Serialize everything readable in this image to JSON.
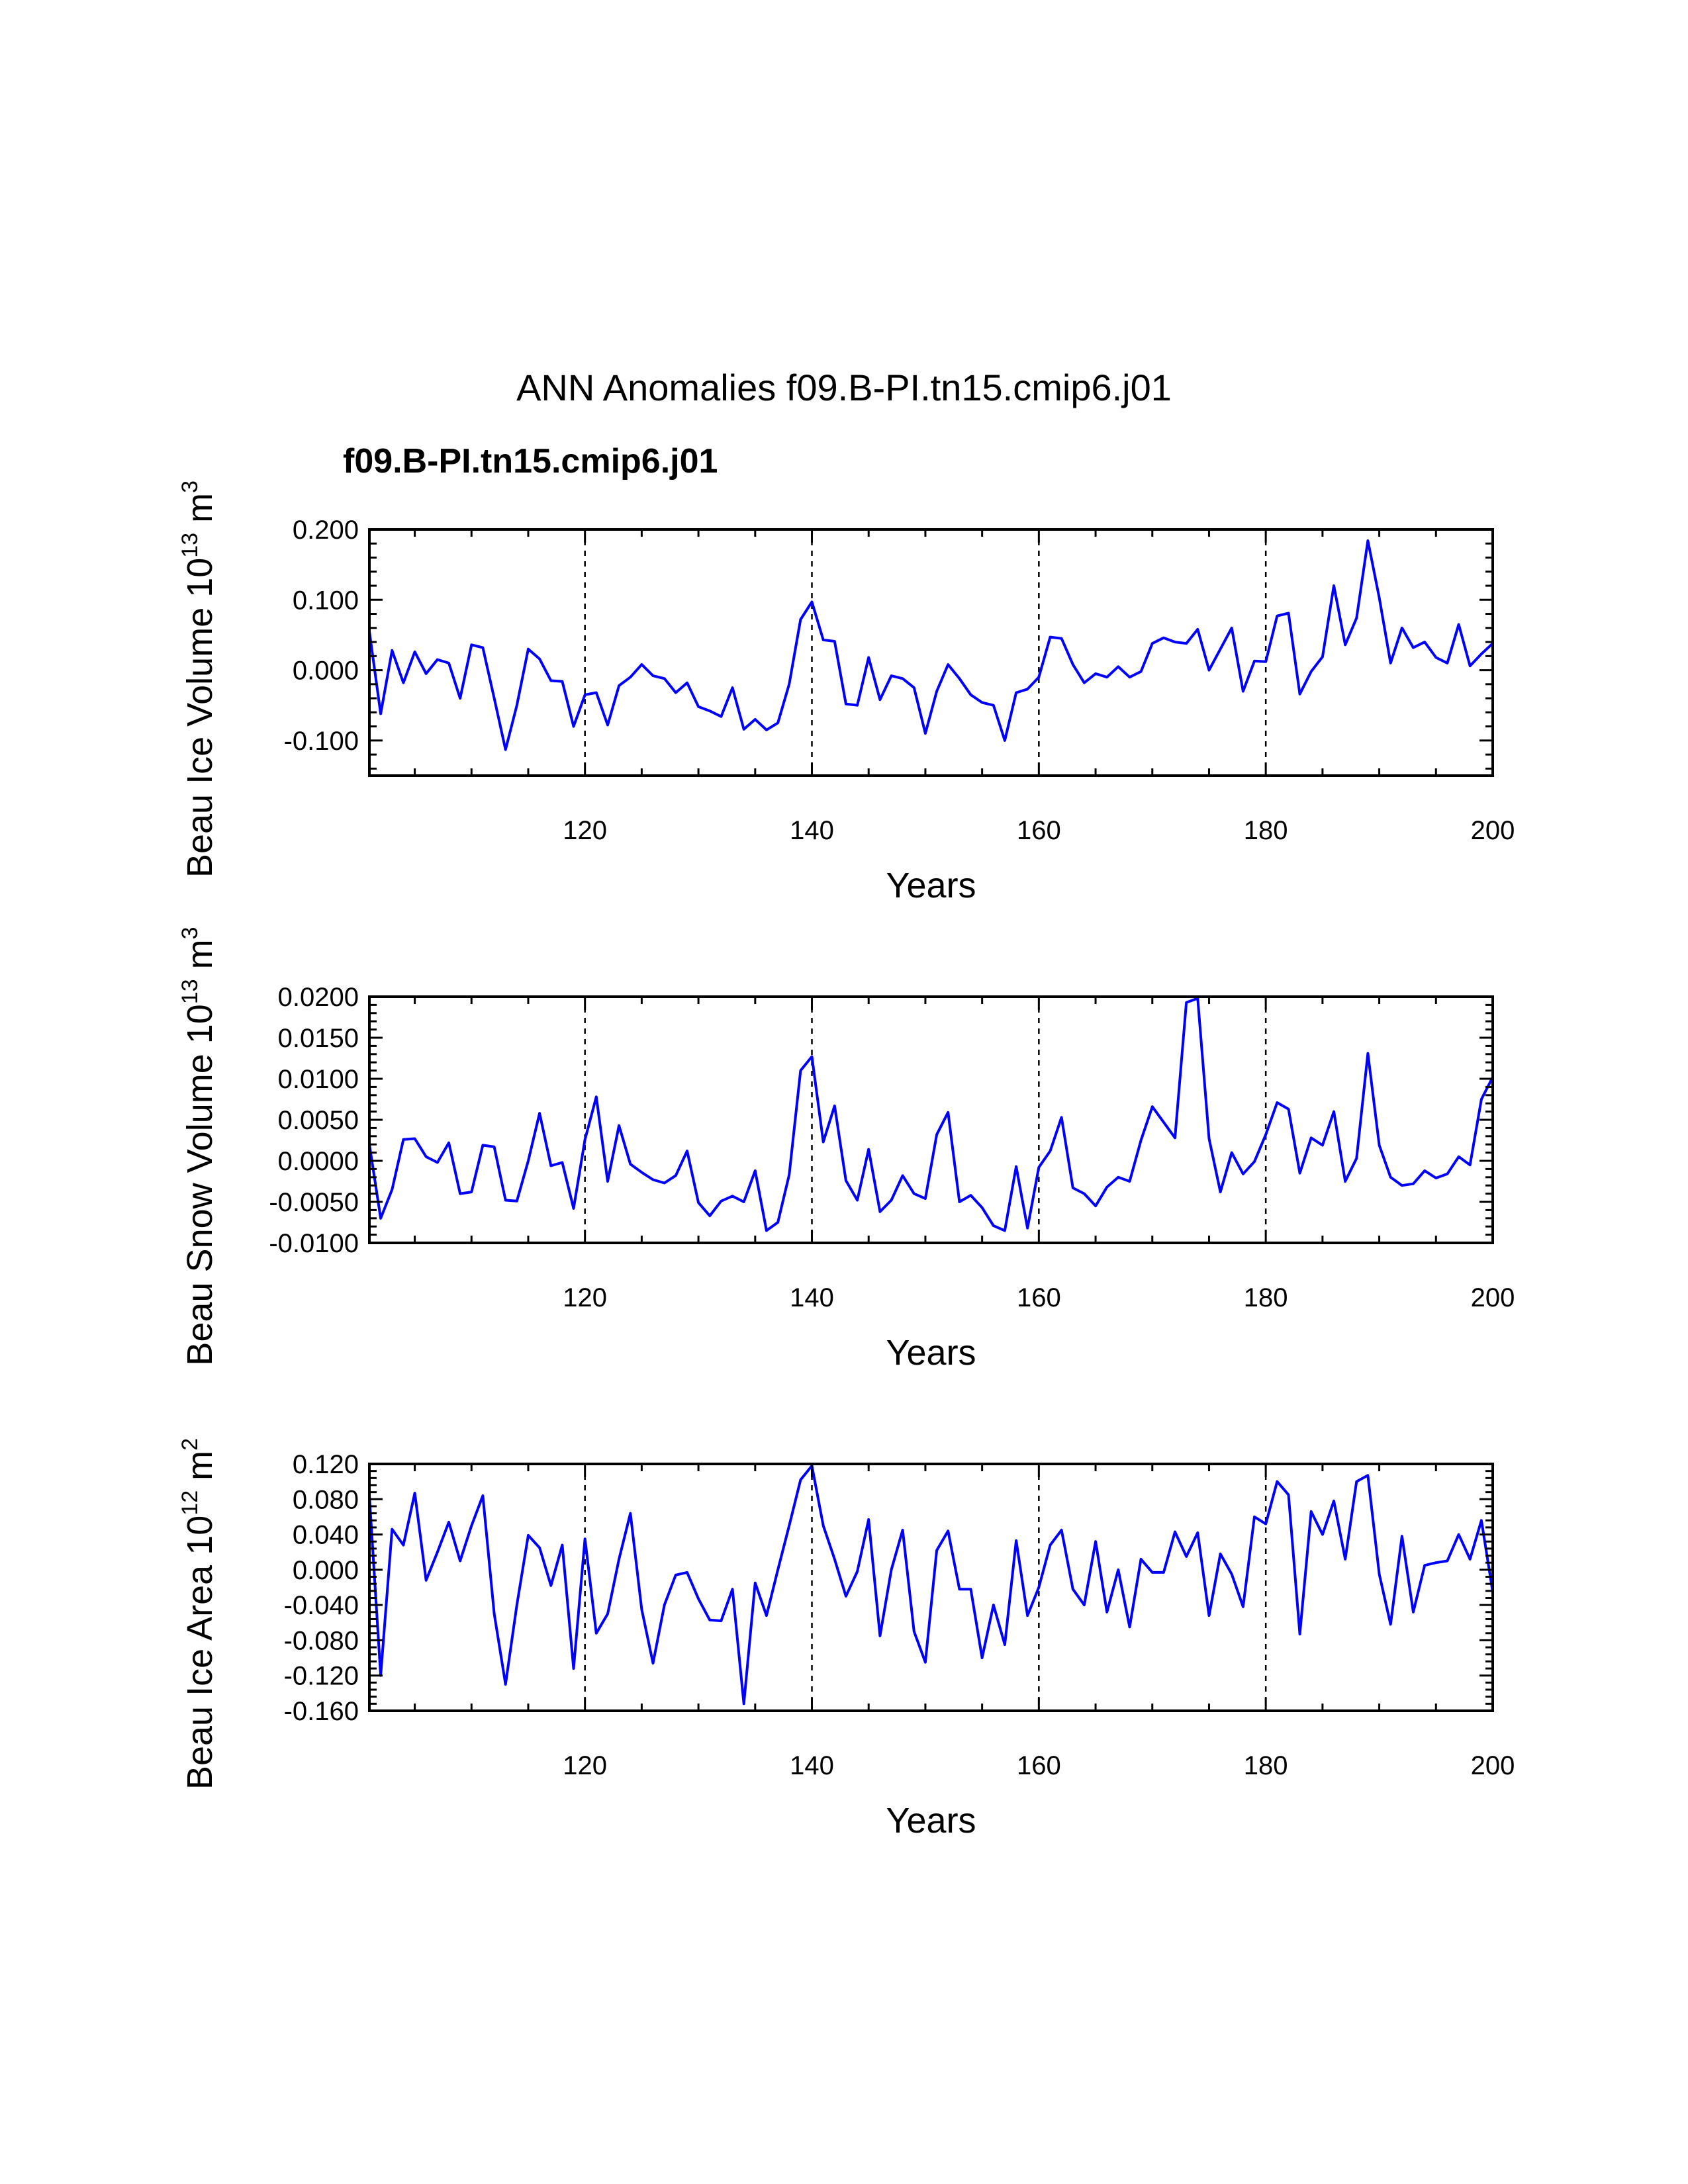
{
  "figure": {
    "title": "ANN Anomalies f09.B-PI.tn15.cmip6.j01",
    "case_label": "f09.B-PI.tn15.cmip6.j01"
  },
  "colors": {
    "series": "#0000ff",
    "case_label": "#0000ff",
    "text": "#000000"
  },
  "chart_data": [
    {
      "type": "line",
      "name": "ice-volume",
      "title": "",
      "xlabel": "Years",
      "ylabel": {
        "main": "Beau Ice Volume 10",
        "exp": "13",
        "unit": " m",
        "unit_exp": "3"
      },
      "xlim": [
        101,
        200
      ],
      "ylim": [
        -0.15,
        0.2
      ],
      "x_ticks": [
        120,
        140,
        160,
        180,
        200
      ],
      "y_ticks": [
        -0.1,
        0.0,
        0.1,
        0.2
      ],
      "y_tick_labels": [
        "-0.100",
        "0.000",
        "0.100",
        "0.200"
      ],
      "vlines": [
        120,
        140,
        160,
        180
      ],
      "x_start": 101,
      "series": [
        {
          "name": "f09.B-PI.tn15.cmip6.j01",
          "values": [
            0.055,
            -0.062,
            0.028,
            -0.018,
            0.026,
            -0.005,
            0.015,
            0.01,
            -0.04,
            0.036,
            0.032,
            -0.04,
            -0.113,
            -0.05,
            0.03,
            0.016,
            -0.015,
            -0.016,
            -0.08,
            -0.035,
            -0.032,
            -0.078,
            -0.022,
            -0.01,
            0.008,
            -0.008,
            -0.012,
            -0.032,
            -0.018,
            -0.052,
            -0.058,
            -0.066,
            -0.025,
            -0.084,
            -0.07,
            -0.085,
            -0.075,
            -0.02,
            0.072,
            0.097,
            0.043,
            0.041,
            -0.048,
            -0.05,
            0.018,
            -0.042,
            -0.008,
            -0.012,
            -0.025,
            -0.09,
            -0.03,
            0.008,
            -0.012,
            -0.035,
            -0.046,
            -0.05,
            -0.1,
            -0.032,
            -0.027,
            -0.01,
            0.047,
            0.045,
            0.008,
            -0.018,
            -0.005,
            -0.01,
            0.005,
            -0.01,
            -0.002,
            0.038,
            0.046,
            0.04,
            0.038,
            0.058,
            0.0,
            0.03,
            0.06,
            -0.03,
            0.013,
            0.012,
            0.077,
            0.081,
            -0.034,
            -0.002,
            0.019,
            0.12,
            0.036,
            0.074,
            0.184,
            0.103,
            0.01,
            0.06,
            0.032,
            0.04,
            0.018,
            0.01,
            0.065,
            0.006,
            0.023,
            0.038
          ]
        }
      ]
    },
    {
      "type": "line",
      "name": "snow-volume",
      "title": "",
      "xlabel": "Years",
      "ylabel": {
        "main": "Beau Snow Volume 10",
        "exp": "13",
        "unit": " m",
        "unit_exp": "3"
      },
      "xlim": [
        101,
        200
      ],
      "ylim": [
        -0.01,
        0.02
      ],
      "x_ticks": [
        120,
        140,
        160,
        180,
        200
      ],
      "y_ticks": [
        -0.01,
        -0.005,
        0.0,
        0.005,
        0.01,
        0.015,
        0.02
      ],
      "y_tick_labels": [
        "-0.0100",
        "-0.0050",
        "0.0000",
        "0.0050",
        "0.0100",
        "0.0150",
        "0.0200"
      ],
      "vlines": [
        120,
        140,
        160,
        180
      ],
      "x_start": 101,
      "series": [
        {
          "name": "f09.B-PI.tn15.cmip6.j01",
          "values": [
            0.002,
            -0.007,
            -0.0035,
            0.0026,
            0.0027,
            0.0005,
            -0.0002,
            0.0022,
            -0.004,
            -0.0038,
            0.0019,
            0.0017,
            -0.0048,
            -0.0049,
            0.0,
            0.0058,
            -0.0006,
            -0.0002,
            -0.0058,
            0.0026,
            0.0078,
            -0.0025,
            0.0043,
            -0.0004,
            -0.0014,
            -0.0023,
            -0.0027,
            -0.0018,
            0.0012,
            -0.0051,
            -0.0067,
            -0.0049,
            -0.0043,
            -0.005,
            -0.0012,
            -0.0085,
            -0.0075,
            -0.0017,
            0.011,
            0.0127,
            0.0023,
            0.0067,
            -0.0024,
            -0.0048,
            0.0014,
            -0.0062,
            -0.0048,
            -0.0018,
            -0.004,
            -0.0046,
            0.0032,
            0.0059,
            -0.005,
            -0.0042,
            -0.0057,
            -0.0079,
            -0.0085,
            -0.0007,
            -0.0082,
            -0.0008,
            0.0012,
            0.0053,
            -0.0033,
            -0.004,
            -0.0055,
            -0.0032,
            -0.002,
            -0.0025,
            0.0025,
            0.0066,
            0.0047,
            0.0028,
            0.0193,
            0.0198,
            0.0027,
            -0.0038,
            0.001,
            -0.0016,
            -0.0001,
            0.0032,
            0.0071,
            0.0063,
            -0.0015,
            0.0028,
            0.0019,
            0.006,
            -0.0025,
            0.0003,
            0.0131,
            0.0019,
            -0.002,
            -0.003,
            -0.0028,
            -0.0012,
            -0.0021,
            -0.0016,
            0.0005,
            -0.0005,
            0.0075,
            0.0102
          ]
        }
      ]
    },
    {
      "type": "line",
      "name": "ice-area",
      "title": "",
      "xlabel": "Years",
      "ylabel": {
        "main": "Beau Ice Area 10",
        "exp": "12",
        "unit": " m",
        "unit_exp": "2"
      },
      "xlim": [
        101,
        200
      ],
      "ylim": [
        -0.16,
        0.12
      ],
      "x_ticks": [
        120,
        140,
        160,
        180,
        200
      ],
      "y_ticks": [
        -0.16,
        -0.12,
        -0.08,
        -0.04,
        0.0,
        0.04,
        0.08,
        0.12
      ],
      "y_tick_labels": [
        "-0.160",
        "-0.120",
        "-0.080",
        "-0.040",
        "0.000",
        "0.040",
        "0.080",
        "0.120"
      ],
      "vlines": [
        120,
        140,
        160,
        180
      ],
      "x_start": 101,
      "series": [
        {
          "name": "f09.B-PI.tn15.cmip6.j01",
          "values": [
            0.084,
            -0.12,
            0.046,
            0.028,
            0.087,
            -0.012,
            0.02,
            0.054,
            0.01,
            0.05,
            0.084,
            -0.05,
            -0.13,
            -0.04,
            0.039,
            0.025,
            -0.018,
            0.028,
            -0.112,
            0.035,
            -0.072,
            -0.05,
            0.012,
            0.064,
            -0.045,
            -0.106,
            -0.04,
            -0.006,
            -0.003,
            -0.033,
            -0.057,
            -0.058,
            -0.022,
            -0.152,
            -0.015,
            -0.052,
            0.0,
            0.05,
            0.102,
            0.118,
            0.05,
            0.012,
            -0.03,
            -0.002,
            0.057,
            -0.075,
            0.0,
            0.045,
            -0.07,
            -0.105,
            0.022,
            0.044,
            -0.022,
            -0.022,
            -0.1,
            -0.04,
            -0.085,
            0.033,
            -0.052,
            -0.02,
            0.028,
            0.045,
            -0.022,
            -0.04,
            0.032,
            -0.048,
            0.0,
            -0.065,
            0.012,
            -0.003,
            -0.003,
            0.043,
            0.015,
            0.042,
            -0.052,
            0.018,
            -0.005,
            -0.042,
            0.06,
            0.052,
            0.1,
            0.085,
            -0.073,
            0.066,
            0.04,
            0.078,
            0.012,
            0.1,
            0.107,
            -0.005,
            -0.062,
            0.038,
            -0.048,
            0.005,
            0.008,
            0.01,
            0.04,
            0.012,
            0.056,
            -0.025
          ]
        }
      ]
    }
  ]
}
